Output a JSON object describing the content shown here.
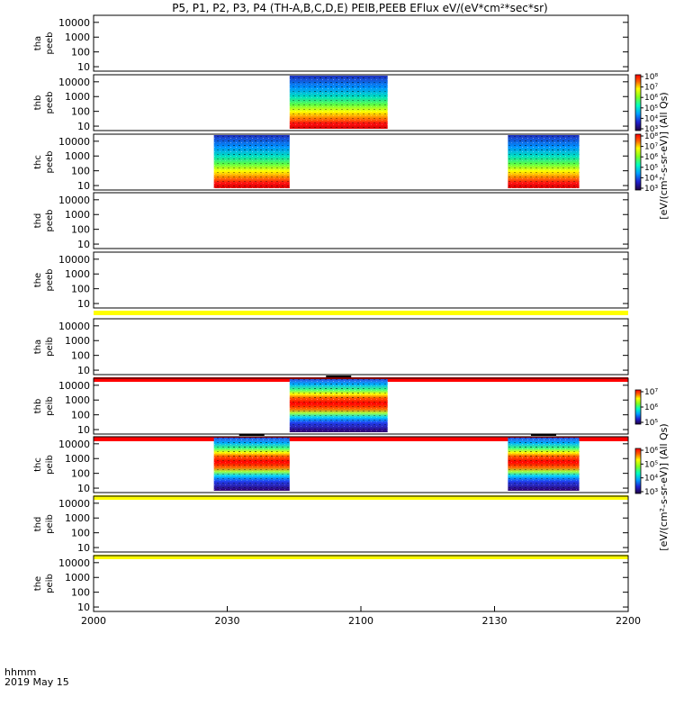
{
  "title": "P5, P1, P2, P3, P4 (TH-A,B,C,D,E) PEIB,PEEB EFlux eV/(eV*cm²*sec*sr)",
  "x_unit_label": "hhmm",
  "date_label": "2019 May 15",
  "x_ticks": [
    "2000",
    "2030",
    "2100",
    "2130",
    "2200"
  ],
  "y_ticks": [
    "10",
    "100",
    "1000",
    "10000"
  ],
  "colorbars": [
    {
      "label": "[eV/(cm²-s-sr-eV)] (All Qs)",
      "ticks": [
        "10³",
        "10⁴",
        "10⁵",
        "10⁶",
        "10⁷",
        "10⁸"
      ]
    },
    {
      "label": "[eV/(cm²-s-sr-eV)] (All Qs)",
      "ticks": [
        "10³",
        "10⁴",
        "10⁵",
        "10⁶",
        "10⁷",
        "10⁸"
      ]
    },
    {
      "label": "[eV/(cm²-s-sr-eV)] (All Qs)",
      "ticks": [
        "10⁵",
        "10⁶",
        "10⁷"
      ]
    },
    {
      "label": "[eV/(cm²-s-sr-eV)] (All Qs)",
      "ticks": [
        "10³",
        "10⁴",
        "10⁵",
        "10⁶"
      ]
    }
  ],
  "chart_data": {
    "type": "heatmap",
    "x_range": [
      "2000",
      "2200"
    ],
    "y_range_eV": [
      5,
      30000
    ],
    "y_scale": "log",
    "panels": [
      {
        "probe": "tha",
        "instrument": "peeb",
        "blocks": []
      },
      {
        "probe": "thb",
        "instrument": "peeb",
        "blocks": [
          {
            "start": "2044",
            "end": "2106"
          }
        ]
      },
      {
        "probe": "thc",
        "instrument": "peeb",
        "blocks": [
          {
            "start": "2027",
            "end": "2044"
          },
          {
            "start": "2133",
            "end": "2149"
          }
        ]
      },
      {
        "probe": "thd",
        "instrument": "peeb",
        "blocks": []
      },
      {
        "probe": "the",
        "instrument": "peeb",
        "blocks": [],
        "bottom_bar": "yellow"
      },
      {
        "probe": "tha",
        "instrument": "peib",
        "blocks": [],
        "bottom_bar": "red"
      },
      {
        "probe": "thb",
        "instrument": "peib",
        "blocks": [
          {
            "start": "2044",
            "end": "2106"
          }
        ],
        "bottom_bar": "red"
      },
      {
        "probe": "thc",
        "instrument": "peib",
        "blocks": [
          {
            "start": "2027",
            "end": "2044"
          },
          {
            "start": "2133",
            "end": "2149"
          }
        ],
        "bottom_bar": "yellow"
      },
      {
        "probe": "thd",
        "instrument": "peib",
        "blocks": [],
        "bottom_bar": "yellow"
      },
      {
        "probe": "the",
        "instrument": "peib",
        "blocks": []
      }
    ]
  },
  "colors": {
    "yellow_bar": "#ffff00",
    "red_bar": "#ff0000"
  }
}
